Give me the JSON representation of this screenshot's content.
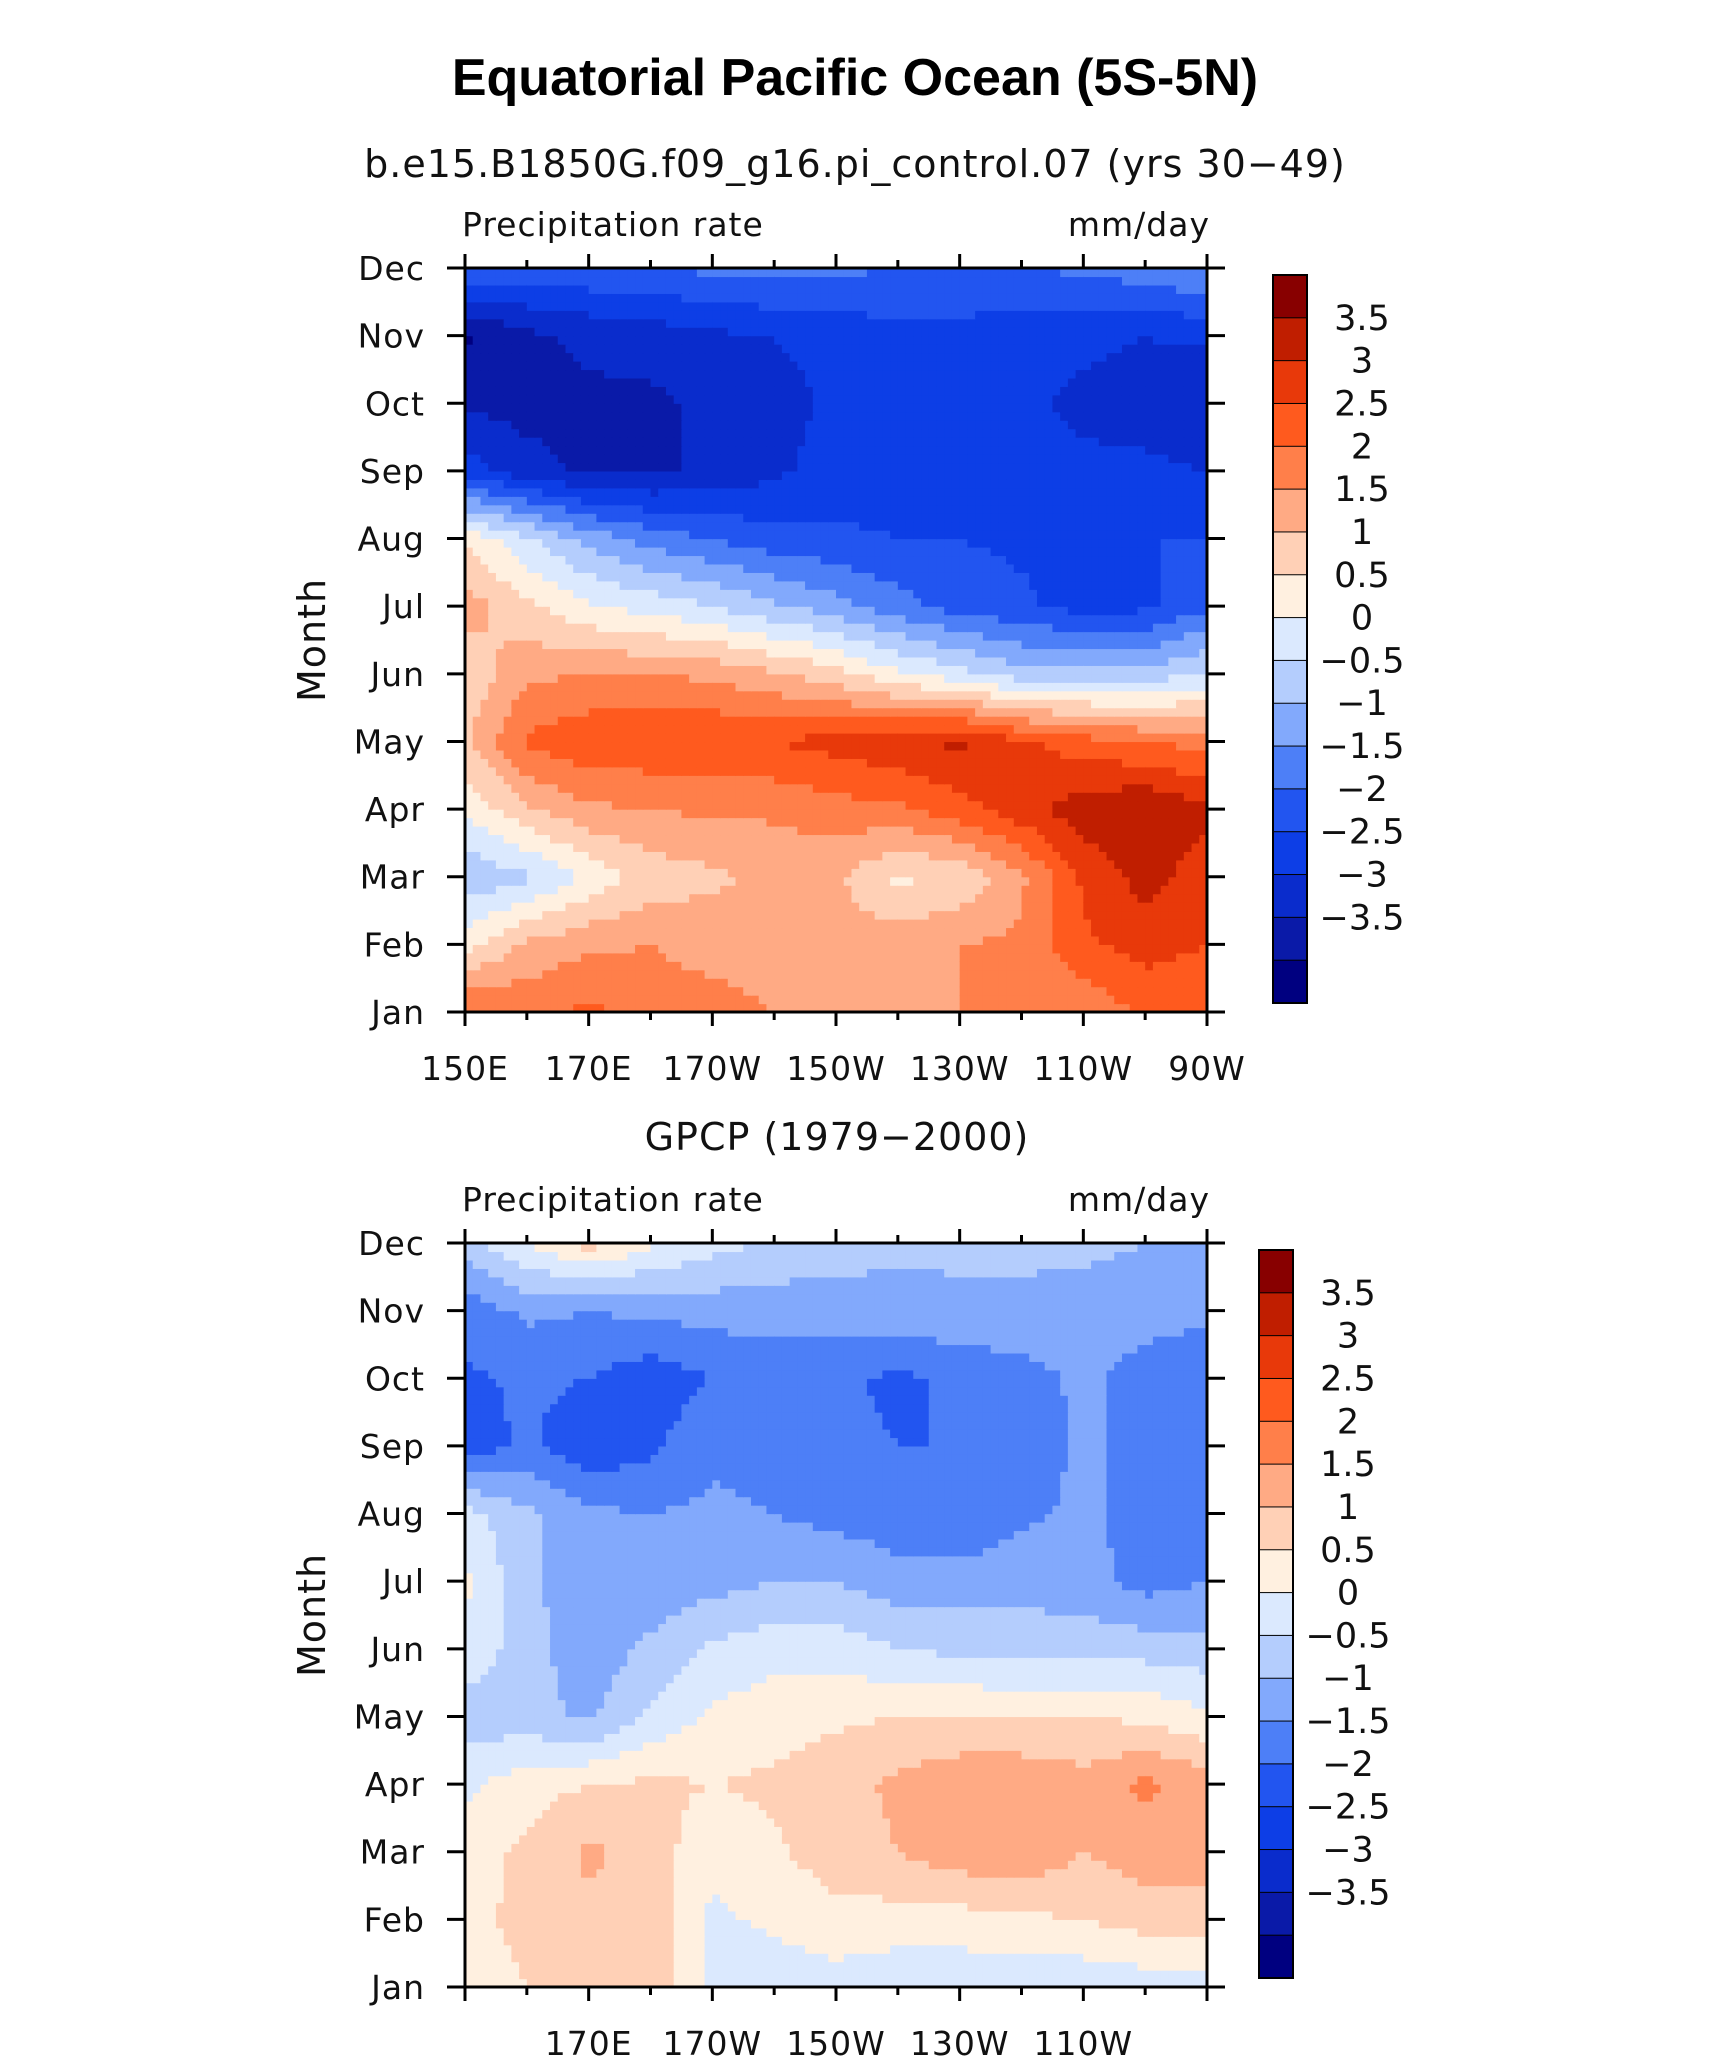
{
  "figure_title": "Equatorial Pacific Ocean (5S-5N)",
  "colorbar_levels": [
    "3.5",
    "3",
    "2.5",
    "2",
    "1.5",
    "1",
    "0.5",
    "0",
    "−0.5",
    "−1",
    "−1.5",
    "−2",
    "−2.5",
    "−3",
    "−3.5"
  ],
  "colors": {
    "palette": [
      "#000080",
      "#0a1aa8",
      "#0a2ccc",
      "#0d3ee6",
      "#2255f0",
      "#4d7ff7",
      "#82a9fc",
      "#b4cdfd",
      "#dbe9fe",
      "#fff0e0",
      "#ffd0b6",
      "#ffaa84",
      "#ff7f4a",
      "#ff5a1e",
      "#e8390a",
      "#c01e00",
      "#880000"
    ]
  },
  "chart_data": [
    {
      "type": "heatmap",
      "title": "b.e15.B1850G.f09_g16.pi_control.07 (yrs 30−49)",
      "left_label": "Precipitation rate",
      "right_label": "mm/day",
      "ylabel": "Month",
      "x_ticklabels": [
        "150E",
        "170E",
        "170W",
        "150W",
        "130W",
        "110W",
        "90W"
      ],
      "y_ticklabels": [
        "Jan",
        "Feb",
        "Mar",
        "Apr",
        "May",
        "Jun",
        "Jul",
        "Aug",
        "Sep",
        "Oct",
        "Nov",
        "Dec"
      ],
      "x": [
        150,
        160,
        170,
        180,
        190,
        200,
        210,
        220,
        230,
        240,
        250,
        260,
        270
      ],
      "y": [
        "Jan",
        "Feb",
        "Mar",
        "Apr",
        "May",
        "Jun",
        "Jul",
        "Aug",
        "Sep",
        "Oct",
        "Nov",
        "Dec"
      ],
      "xlim": [
        150,
        270
      ],
      "colorbar_range": [
        -4,
        4
      ],
      "values": [
        [
          2.6,
          2.4,
          2.6,
          2.3,
          2.2,
          2.0,
          2.0,
          2.0,
          2.0,
          2.0,
          2.1,
          2.6,
          2.5
        ],
        [
          0.8,
          1.6,
          1.9,
          2.0,
          1.8,
          1.8,
          1.7,
          1.8,
          2.0,
          2.1,
          2.9,
          3.2,
          3.0
        ],
        [
          -0.4,
          -0.1,
          0.6,
          1.2,
          1.4,
          1.6,
          1.6,
          0.9,
          1.1,
          1.9,
          3.1,
          3.7,
          3.2
        ],
        [
          0.6,
          1.4,
          1.9,
          2.0,
          2.1,
          2.1,
          2.3,
          2.4,
          2.8,
          3.3,
          3.8,
          4.0,
          3.6
        ],
        [
          1.4,
          2.6,
          2.9,
          2.9,
          3.0,
          3.0,
          3.2,
          3.4,
          3.6,
          3.1,
          2.7,
          2.5,
          2.3
        ],
        [
          1.1,
          1.9,
          2.0,
          2.0,
          1.9,
          1.6,
          1.2,
          0.6,
          0.2,
          -0.3,
          -0.3,
          -0.3,
          0.1
        ],
        [
          1.8,
          1.1,
          0.6,
          0.3,
          0.0,
          -0.4,
          -0.8,
          -1.3,
          -1.7,
          -1.9,
          -2.2,
          -2.1,
          -1.6
        ],
        [
          0.9,
          0.1,
          -0.7,
          -1.2,
          -1.5,
          -1.8,
          -1.9,
          -2.0,
          -2.0,
          -2.1,
          -2.1,
          -2.0,
          -2.0
        ],
        [
          -2.2,
          -2.8,
          -3.1,
          -3.1,
          -2.9,
          -2.6,
          -2.3,
          -2.2,
          -2.1,
          -2.3,
          -2.4,
          -2.4,
          -2.5
        ],
        [
          -3.1,
          -3.2,
          -3.1,
          -3.1,
          -2.9,
          -2.7,
          -2.4,
          -2.2,
          -2.1,
          -2.4,
          -2.6,
          -2.7,
          -3.0
        ],
        [
          -3.6,
          -3.1,
          -2.9,
          -2.8,
          -2.6,
          -2.5,
          -2.3,
          -2.2,
          -2.2,
          -2.3,
          -2.4,
          -2.5,
          -2.4
        ],
        [
          -1.6,
          -1.7,
          -1.6,
          -1.5,
          -1.4,
          -1.3,
          -1.4,
          -1.5,
          -1.5,
          -1.5,
          -1.4,
          -1.2,
          -0.9
        ]
      ]
    },
    {
      "type": "heatmap",
      "title": "GPCP (1979−2000)",
      "left_label": "Precipitation rate",
      "right_label": "mm/day",
      "ylabel": "Month",
      "x_ticklabels": [
        "170E",
        "170W",
        "150W",
        "130W",
        "110W"
      ],
      "y_ticklabels": [
        "Jan",
        "Feb",
        "Mar",
        "Apr",
        "May",
        "Jun",
        "Jul",
        "Aug",
        "Sep",
        "Oct",
        "Nov",
        "Dec"
      ],
      "x": [
        150,
        160,
        170,
        180,
        190,
        200,
        210,
        220,
        230,
        240,
        250,
        260,
        270
      ],
      "y": [
        "Jan",
        "Feb",
        "Mar",
        "Apr",
        "May",
        "Jun",
        "Jul",
        "Aug",
        "Sep",
        "Oct",
        "Nov",
        "Dec"
      ],
      "xlim": [
        150,
        270
      ],
      "colorbar_range": [
        -4,
        4
      ],
      "values": [
        [
          0.8,
          1.0,
          1.2,
          1.4,
          0.3,
          0.2,
          0.3,
          0.1,
          0.1,
          0.1,
          0.1,
          0.2,
          0.3
        ],
        [
          0.9,
          1.1,
          1.4,
          1.3,
          0.4,
          0.6,
          0.8,
          0.8,
          0.8,
          0.9,
          1.0,
          1.2,
          1.3
        ],
        [
          0.8,
          1.1,
          1.6,
          1.3,
          0.6,
          0.9,
          1.3,
          1.5,
          1.8,
          1.9,
          1.5,
          1.8,
          1.7
        ],
        [
          0.4,
          0.8,
          1.0,
          1.1,
          1.0,
          1.1,
          1.3,
          1.6,
          1.9,
          1.9,
          1.7,
          2.1,
          1.8
        ],
        [
          -0.3,
          -0.3,
          -0.6,
          0.1,
          0.6,
          0.8,
          0.9,
          1.0,
          1.0,
          1.0,
          1.0,
          0.9,
          0.6
        ],
        [
          0.4,
          -0.3,
          -0.8,
          -0.4,
          0.1,
          0.3,
          0.3,
          0.0,
          -0.1,
          -0.2,
          -0.2,
          -0.2,
          -0.3
        ],
        [
          0.6,
          -0.4,
          -0.8,
          -0.8,
          -0.7,
          -0.5,
          -0.5,
          -0.8,
          -0.8,
          -0.7,
          -0.8,
          -1.2,
          -1.0
        ],
        [
          0.2,
          -0.4,
          -0.9,
          -1.0,
          -0.9,
          -1.0,
          -1.2,
          -1.3,
          -1.4,
          -1.1,
          -0.9,
          -1.2,
          -1.1
        ],
        [
          -1.8,
          -1.4,
          -1.9,
          -1.6,
          -1.1,
          -1.2,
          -1.4,
          -1.5,
          -1.5,
          -1.3,
          -0.9,
          -1.2,
          -1.2
        ],
        [
          -1.6,
          -1.4,
          -1.5,
          -1.8,
          -1.5,
          -1.3,
          -1.4,
          -1.6,
          -1.4,
          -1.2,
          -0.9,
          -1.2,
          -1.4
        ],
        [
          -1.3,
          -0.9,
          -1.0,
          -0.9,
          -0.8,
          -0.8,
          -0.7,
          -0.7,
          -0.6,
          -0.6,
          -0.7,
          -0.8,
          -0.9
        ],
        [
          -0.2,
          0.5,
          1.2,
          0.6,
          0.2,
          -0.1,
          -0.3,
          -0.4,
          -0.4,
          -0.4,
          -0.4,
          -0.5,
          -0.5
        ]
      ]
    }
  ]
}
